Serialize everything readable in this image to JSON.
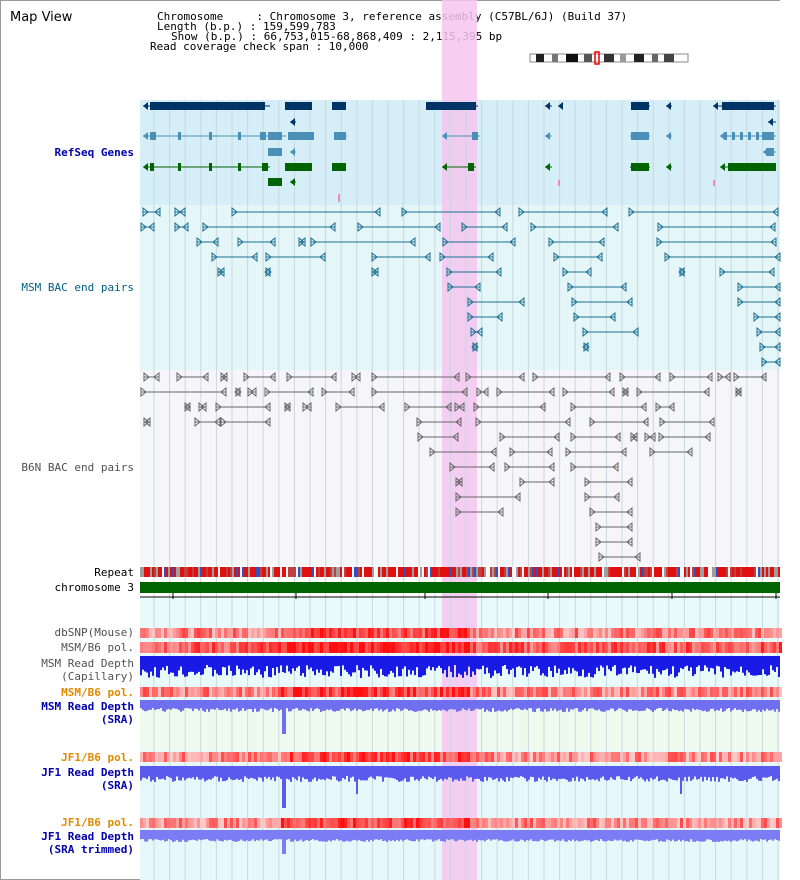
{
  "title": "Map View",
  "info": {
    "chromosome_line": "Chromosome     : Chromosome 3, reference assembly (C57BL/6J) (Build 37)",
    "length_line": "Length (b.p.) : 159,599,783",
    "show_line": "Show (b.p.) : 66,753,015-68,868,409 : 2,115,395 bp",
    "coverage_line": "Read coverage check span : 10,000"
  },
  "tracks": {
    "refseq": "RefSeq Genes",
    "msm_bac": "MSM BAC end pairs",
    "b6n_bac": "B6N BAC end pairs",
    "repeat": "Repeat",
    "chromosome": "chromosome 3",
    "dbsnp": "dbSNP(Mouse)",
    "msm_b6_pol": "MSM/B6 pol.",
    "msm_read_depth_cap_1": "MSM Read Depth",
    "msm_read_depth_cap_2": "(Capillary)",
    "msm_b6_pol2": "MSM/B6 pol.",
    "msm_read_depth_sra_1": "MSM Read Depth",
    "msm_read_depth_sra_2": "(SRA)",
    "jf1_b6_pol": "JF1/B6 pol.",
    "jf1_read_depth_sra_1": "JF1 Read Depth",
    "jf1_read_depth_sra_2": "(SRA)",
    "jf1_b6_pol2": "JF1/B6 pol.",
    "jf1_read_depth_trim_1": "JF1 Read Depth",
    "jf1_read_depth_trim_2": "(SRA trimmed)"
  },
  "axis": {
    "ticks": [
      "66800000",
      "67200000",
      "67600000",
      "68000000",
      "68400000",
      "688000"
    ]
  },
  "colors": {
    "refseq_label": "#0000aa",
    "msm_bac_label": "#006080",
    "b6n_bac_label": "#505050",
    "orange_label": "#e08a00",
    "blue_label": "#0000aa",
    "highlight": "#f4c8f4",
    "gene_dark": "#003366",
    "gene_mid": "#4a90b8",
    "gene_green": "#006400"
  }
}
